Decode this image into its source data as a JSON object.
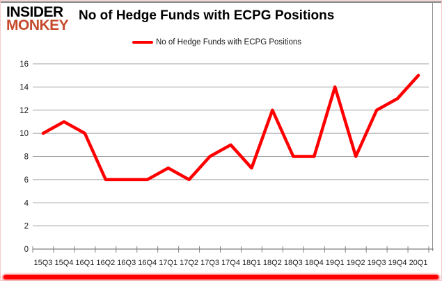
{
  "logo": {
    "line1": "INSIDER",
    "line2": "MONKEY",
    "line2_color": "#c54a2c"
  },
  "title": "No of Hedge Funds with ECPG Positions",
  "legend": {
    "label": "No of Hedge Funds with ECPG Positions",
    "line_color": "#ff0000"
  },
  "chart_data": {
    "type": "line",
    "categories": [
      "15Q3",
      "15Q4",
      "16Q1",
      "16Q2",
      "16Q3",
      "16Q4",
      "17Q1",
      "17Q2",
      "17Q3",
      "17Q4",
      "18Q1",
      "18Q2",
      "18Q3",
      "18Q4",
      "19Q1",
      "19Q2",
      "19Q3",
      "19Q4",
      "20Q1"
    ],
    "values": [
      10,
      11,
      10,
      6,
      6,
      6,
      7,
      6,
      8,
      9,
      7,
      12,
      8,
      8,
      14,
      8,
      12,
      13,
      15
    ],
    "title": "No of Hedge Funds with ECPG Positions",
    "xlabel": "",
    "ylabel": "",
    "ylim": [
      0,
      16
    ],
    "ytick_step": 2,
    "grid": true,
    "legend_position": "top",
    "line_color": "#ff0000",
    "grid_color": "#a0a0a0",
    "axis_color": "#7f7f7f",
    "label_color": "#1a1a1a"
  }
}
